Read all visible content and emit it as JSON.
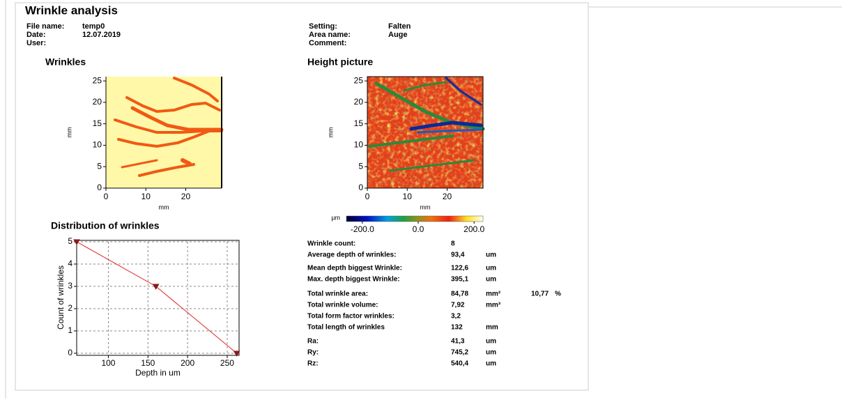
{
  "header": {
    "title": "Wrinkle analysis"
  },
  "info": {
    "left": [
      {
        "label": "File name:",
        "value": "temp0"
      },
      {
        "label": "Date:",
        "value": "12.07.2019"
      },
      {
        "label": "User:"
      }
    ],
    "right": [
      {
        "label": "Setting:",
        "value": "Falten"
      },
      {
        "label": "Area name:",
        "value": "Auge"
      },
      {
        "label": "Comment:"
      }
    ]
  },
  "wrinkles_panel": {
    "title": "Wrinkles",
    "xlabel": "mm",
    "ylabel": "mm",
    "xlim": [
      0,
      29
    ],
    "ylim": [
      0,
      26
    ],
    "xticks": [
      0,
      10,
      20
    ],
    "yticks": [
      0,
      5,
      10,
      15,
      20,
      25
    ]
  },
  "height_panel": {
    "title": "Height picture",
    "xlabel": "mm",
    "ylabel": "mm",
    "xlim": [
      0,
      29
    ],
    "ylim": [
      0,
      26
    ],
    "xticks": [
      0,
      10,
      20
    ],
    "yticks": [
      0,
      5,
      10,
      15,
      20,
      25
    ],
    "colorbar": {
      "unit": "µm",
      "clim": [
        -257,
        232
      ],
      "ticks": [
        {
          "value": -200,
          "label": "-200.0"
        },
        {
          "value": 0,
          "label": "0.0"
        },
        {
          "value": 200,
          "label": "200.0"
        }
      ]
    }
  },
  "distribution": {
    "type": "line",
    "title": "Distribution of wrinkles",
    "xlabel": "Depth in um",
    "ylabel": "Count of wrinkles",
    "x": [
      60,
      160,
      262
    ],
    "values": [
      5,
      3,
      0
    ],
    "color": "#e02020",
    "marker_color": "#8b1a1a",
    "xlim": [
      60,
      265
    ],
    "ylim": [
      0,
      5
    ],
    "xticks": [
      100,
      150,
      200,
      250
    ],
    "yticks": [
      0,
      1,
      2,
      3,
      4,
      5
    ],
    "grid": true
  },
  "stats": {
    "rows": [
      {
        "label": "Wrinkle count:",
        "value": "8"
      },
      {
        "label": "Average depth of wrinkles:",
        "value": "93,4",
        "unit": "um"
      },
      {
        "label": "Mean depth biggest Wrinkle:",
        "value": "122,6",
        "unit": "um"
      },
      {
        "label": "Max. depth biggest Wrinkle:",
        "value": "395,1",
        "unit": "um"
      },
      {
        "label": "Total wrinkle area:",
        "value": "84,78",
        "unit": "mm²",
        "extra": "10,77",
        "extra_unit": "%"
      },
      {
        "label": "Total wrinkle volume:",
        "value": "7,92",
        "unit": "mm³"
      },
      {
        "label": "Total form factor wrinkles:",
        "value": "3,2"
      },
      {
        "label": "Total length of wrinkles",
        "value": "132",
        "unit": "mm"
      },
      {
        "label": "Ra:",
        "value": "41,3",
        "unit": "um"
      },
      {
        "label": "Ry:",
        "value": "745,2",
        "unit": "um"
      },
      {
        "label": "Rz:",
        "value": "540,4",
        "unit": "um"
      }
    ]
  }
}
